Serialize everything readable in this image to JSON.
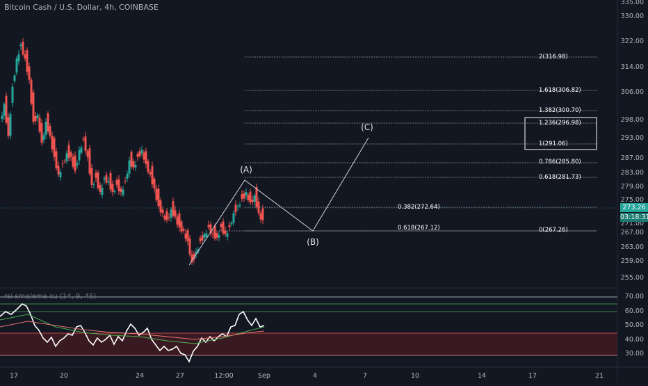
{
  "chart": {
    "title": "Bitcoin Cash / U.S. Dollar, 4h, COINBASE",
    "rsi_title": "rsi sma/ema cu (14, 9, 45)",
    "last_price": "273.26",
    "countdown": "03:18:31"
  },
  "colors": {
    "background": "#131722",
    "up": "#26a69a",
    "down": "#ef5350",
    "rsi_line": "#ffffff",
    "rsi_ma": "#4caf50",
    "rsi_ema": "#e57373",
    "zone_fill": "#3a1a22"
  },
  "price_axis": [
    "335.00",
    "330.00",
    "322.00",
    "314.00",
    "306.00",
    "298.00",
    "293.00",
    "287.00",
    "283.00",
    "279.00",
    "275.00",
    "271.00",
    "267.00",
    "263.00",
    "259.00",
    "255.00"
  ],
  "rsi_axis": [
    "70.00",
    "60.00",
    "50.00",
    "40.00",
    "30.00"
  ],
  "time_axis": [
    "17",
    "20",
    "24",
    "27",
    "12:00",
    "Sep",
    "4",
    "7",
    "10",
    "14",
    "17",
    "21"
  ],
  "fib_levels": [
    {
      "label": "2(316.98)"
    },
    {
      "label": "1.618(306.82)"
    },
    {
      "label": "1.382(300.70)"
    },
    {
      "label": "1.236(296.98)"
    },
    {
      "label": "1(291.06)"
    },
    {
      "label": "0.786(285.80)"
    },
    {
      "label": "0.618(281.73)"
    },
    {
      "label": "0.382(272.64)"
    },
    {
      "label": "0(267.26)"
    },
    {
      "label": "0.618(267.12)"
    }
  ],
  "wave_labels": {
    "a": "(A)",
    "b": "(B)",
    "c": "(C)"
  }
}
